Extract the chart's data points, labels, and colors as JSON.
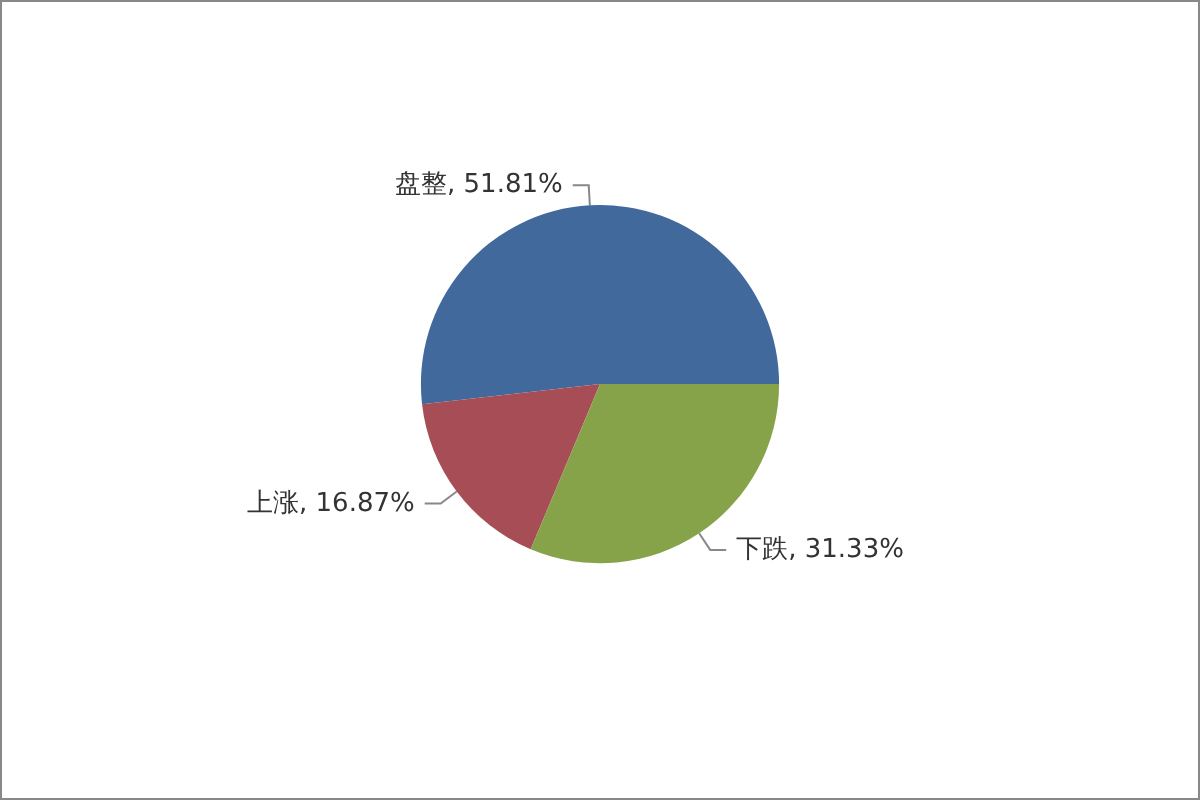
{
  "chart_data": {
    "type": "pie",
    "categories": [
      "盘整",
      "上涨",
      "下跌"
    ],
    "values": [
      51.81,
      16.87,
      31.33
    ],
    "colors": [
      "#41699c",
      "#a64d55",
      "#86a34a"
    ],
    "value_labels": [
      "51.81%",
      "16.87%",
      "31.33%"
    ],
    "legend": false
  }
}
